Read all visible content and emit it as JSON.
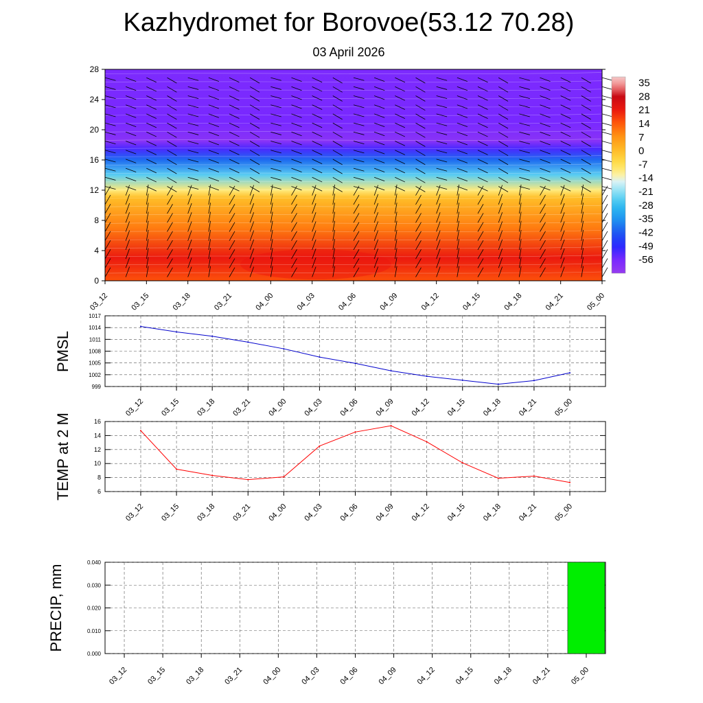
{
  "title": "Kazhydromet for Borovoe(53.12 70.28)",
  "subtitle": "03 April 2026",
  "time_labels": [
    "03_12",
    "03_15",
    "03_18",
    "03_21",
    "04_00",
    "04_03",
    "04_06",
    "04_09",
    "04_12",
    "04_15",
    "04_18",
    "04_21",
    "05_00"
  ],
  "chart_data": [
    {
      "type": "heatmap",
      "name": "vertical-temperature-wind-cross-section",
      "title": "",
      "ylabel": "",
      "ylim": [
        0,
        28
      ],
      "yticks": [
        "0",
        "4",
        "8",
        "12",
        "16",
        "20",
        "24",
        "28"
      ],
      "x": [
        "03_12",
        "03_15",
        "03_18",
        "03_21",
        "04_00",
        "04_03",
        "04_06",
        "04_09",
        "04_12",
        "04_15",
        "04_18",
        "04_21",
        "05_00"
      ],
      "colorbar": {
        "labels": [
          "35",
          "28",
          "21",
          "14",
          "7",
          "0",
          "-7",
          "-14",
          "-21",
          "-28",
          "-35",
          "-42",
          "-49",
          "-56"
        ],
        "range": [
          -63,
          38
        ]
      },
      "layers": [
        {
          "level": 0,
          "temp": 15
        },
        {
          "level": 3,
          "temp": 21
        },
        {
          "level": 7,
          "temp": 10
        },
        {
          "level": 11,
          "temp": 0
        },
        {
          "level": 12,
          "temp": -10
        },
        {
          "level": 14,
          "temp": -25
        },
        {
          "level": 16,
          "temp": -40
        },
        {
          "level": 17.5,
          "temp": -52
        },
        {
          "level": 18.5,
          "temp": -60
        },
        {
          "level": 21,
          "temp": -56
        },
        {
          "level": 28,
          "temp": -57
        }
      ],
      "wind_barbs": "columns at every time step and height"
    },
    {
      "type": "line",
      "name": "pmsl",
      "ylabel": "PMSL",
      "ylim": [
        999,
        1017
      ],
      "yticks": [
        "999",
        "1002",
        "1005",
        "1008",
        "1011",
        "1014",
        "1017"
      ],
      "x": [
        "03_12",
        "03_15",
        "03_18",
        "03_21",
        "04_00",
        "04_03",
        "04_06",
        "04_09",
        "04_12",
        "04_15",
        "04_18",
        "04_21",
        "05_00"
      ],
      "series": [
        {
          "name": "PMSL",
          "color": "#0000cc",
          "values": [
            1014.3,
            1012.9,
            1011.8,
            1010.3,
            1008.6,
            1006.5,
            1004.9,
            1003.0,
            1001.6,
            1000.6,
            999.6,
            1000.5,
            1002.5
          ]
        }
      ]
    },
    {
      "type": "line",
      "name": "temp-2m",
      "ylabel": "TEMP at 2 M",
      "ylim": [
        6,
        16
      ],
      "yticks": [
        "6",
        "8",
        "10",
        "12",
        "14",
        "16"
      ],
      "x": [
        "03_12",
        "03_15",
        "03_18",
        "03_21",
        "04_00",
        "04_03",
        "04_06",
        "04_09",
        "04_12",
        "04_15",
        "04_18",
        "04_21",
        "05_00"
      ],
      "series": [
        {
          "name": "TEMP at 2 M",
          "color": "#ff0000",
          "values": [
            14.7,
            9.2,
            8.3,
            7.7,
            8.1,
            12.5,
            14.5,
            15.4,
            13.1,
            10.1,
            7.9,
            8.2,
            7.3
          ]
        }
      ]
    },
    {
      "type": "bar",
      "name": "precip",
      "ylabel": "PRECIP, mm",
      "ylim": [
        0,
        0.04
      ],
      "yticks": [
        "0.000",
        "0.010",
        "0.020",
        "0.030",
        "0.040"
      ],
      "categories": [
        "03_12",
        "03_15",
        "03_18",
        "03_21",
        "04_00",
        "04_03",
        "04_06",
        "04_09",
        "04_12",
        "04_15",
        "04_18",
        "04_21",
        "05_00"
      ],
      "series": [
        {
          "name": "PRECIP",
          "color": "#00ee00",
          "values": [
            0,
            0,
            0,
            0,
            0,
            0,
            0,
            0,
            0,
            0,
            0,
            0,
            0.04
          ]
        }
      ]
    }
  ]
}
